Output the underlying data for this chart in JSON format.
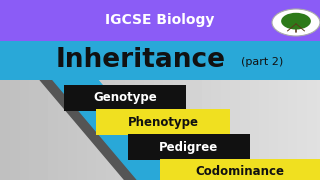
{
  "bg_color": "#cccccc",
  "banner_color": "#8b5cf6",
  "banner_text": "IGCSE Biology",
  "banner_text_color": "#ffffff",
  "title_main": "Inheritance",
  "title_part": "(part 2)",
  "title_color": "#111111",
  "stripe_blue": "#29a8d8",
  "stripe_dark": "#555555",
  "keywords": [
    "Genotype",
    "Phenotype",
    "Pedigree",
    "Codominance"
  ],
  "kw_bg_colors": [
    "#111111",
    "#f0e020",
    "#111111",
    "#f0e020"
  ],
  "kw_text_colors": [
    "#ffffff",
    "#111111",
    "#ffffff",
    "#111111"
  ],
  "kw_fontsize": 8.5,
  "circle_color": "#ffffff",
  "circle_edge": "#aaaaaa",
  "tree_green": "#2d7a1a",
  "tree_brown": "#5a3a1a"
}
